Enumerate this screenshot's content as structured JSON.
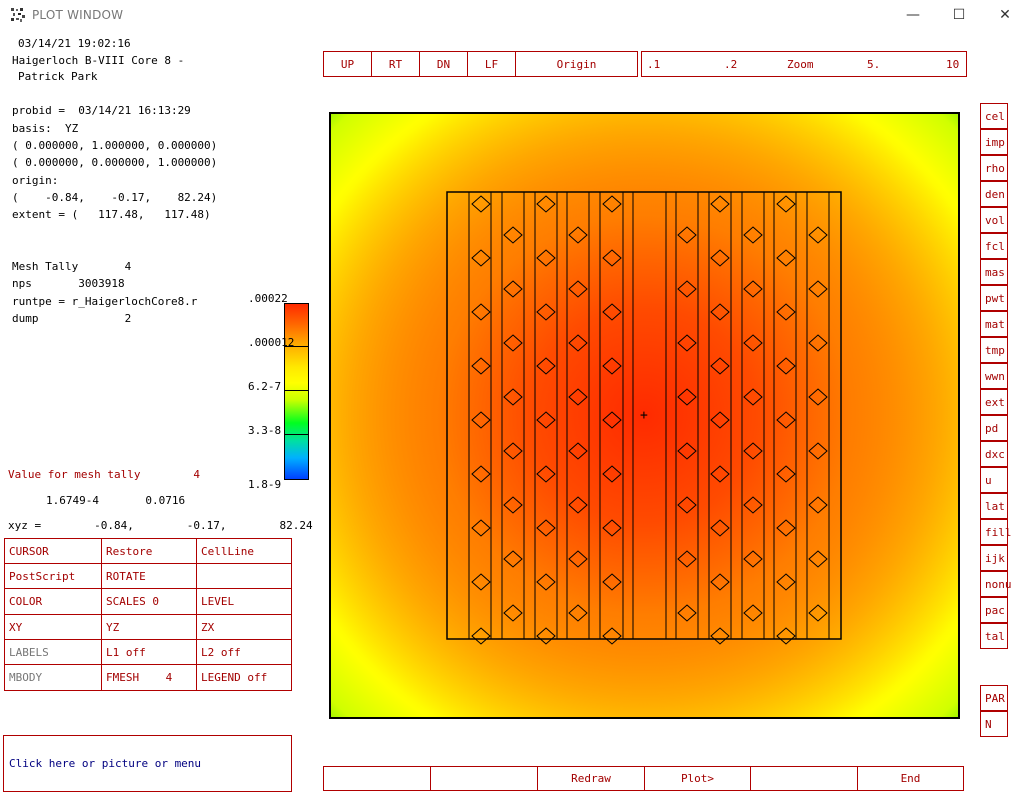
{
  "window": {
    "title": "PLOT WINDOW",
    "minimize": "—",
    "maximize": "☐",
    "close": "✕"
  },
  "info": {
    "datetime": "03/14/21 19:02:16",
    "name1": "Haigerloch B-VIII Core 8 -",
    "name2": "Patrick Park",
    "probid": "probid =  03/14/21 16:13:29",
    "basis": "basis:  YZ",
    "basis_v1": "( 0.000000, 1.000000, 0.000000)",
    "basis_v2": "( 0.000000, 0.000000, 1.000000)",
    "origin_label": "origin:",
    "origin_vals": "(    -0.84,    -0.17,    82.24)",
    "extent": "extent = (   117.48,   117.48)",
    "mesh_tally": "Mesh Tally       4",
    "nps": "nps       3003918",
    "runtpe": "runtpe = r_HaigerlochCore8.r",
    "dump": "dump             2",
    "value_label": "Value for mesh tally        4",
    "value_nums": "1.6749-4       0.0716",
    "xyz": "xyz =        -0.84,        -0.17,        82.24"
  },
  "legend": {
    "ticks": [
      ".00022",
      ".000012",
      "6.2-7",
      "3.3-8",
      "1.8-9"
    ],
    "colors": [
      "#ff2000",
      "#ffc000",
      "#ffff00",
      "#00ff00",
      "#00c0ff",
      "#0040ff"
    ]
  },
  "top_nav": {
    "buttons": [
      "UP",
      "RT",
      "DN",
      "LF",
      "Origin"
    ],
    "zoom": {
      "v1": ".1",
      "v2": ".2",
      "label": "Zoom",
      "v3": "5.",
      "v4": "10"
    }
  },
  "menu": [
    [
      "CURSOR",
      "Restore",
      "CellLine"
    ],
    [
      "PostScript",
      "ROTATE",
      ""
    ],
    [
      "COLOR",
      "SCALES 0",
      "LEVEL"
    ],
    [
      "XY",
      "YZ",
      "ZX"
    ],
    [
      "LABELS",
      "L1 off",
      "L2 off"
    ],
    [
      "MBODY",
      "FMESH    4",
      "LEGEND off"
    ]
  ],
  "prompt": "Click here or picture or menu",
  "right_menu": [
    "cel",
    "imp",
    "rho",
    "den",
    "vol",
    "fcl",
    "mas",
    "pwt",
    "mat",
    "tmp",
    "wwn",
    "ext",
    "pd",
    "dxc",
    "u",
    "lat",
    "fill",
    "ijk",
    "nonu",
    "pac",
    "tal"
  ],
  "right_extra": [
    "PAR",
    "N"
  ],
  "bottom_bar": [
    "",
    "",
    "Redraw",
    "Plot>",
    "",
    "End"
  ],
  "plot": {
    "center_marker": "+"
  }
}
